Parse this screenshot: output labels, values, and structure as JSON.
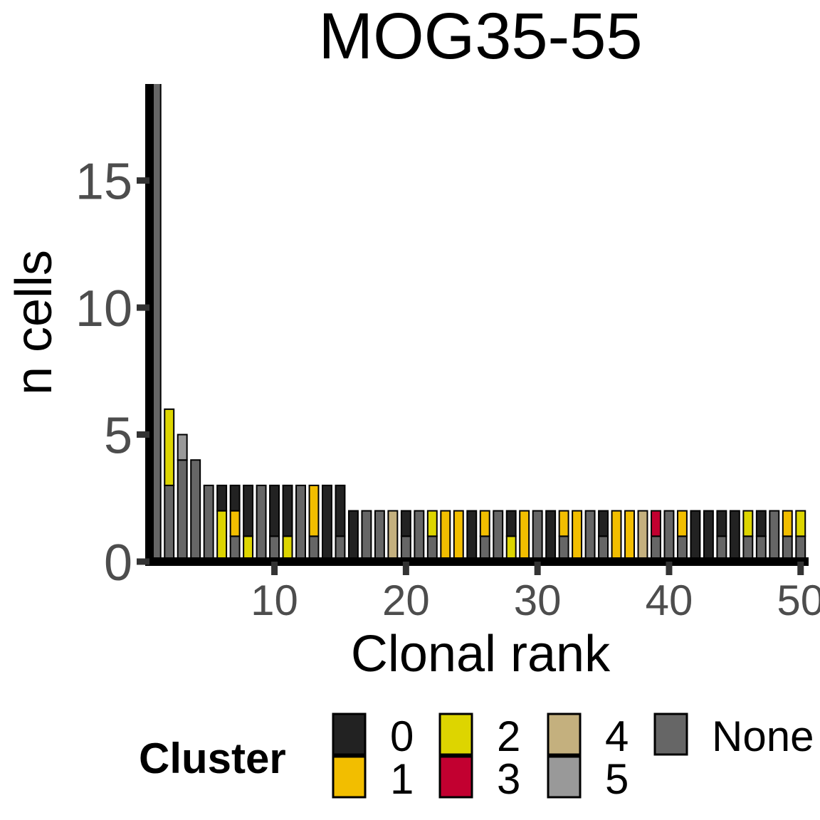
{
  "chart_data": {
    "type": "bar",
    "stacked": true,
    "title": "MOG35-55",
    "xlabel": "Clonal rank",
    "ylabel": "n cells",
    "xlim": [
      0.5,
      50.5
    ],
    "ylim": [
      0,
      18.8
    ],
    "xticks": [
      10,
      20,
      30,
      40,
      50
    ],
    "yticks": [
      0,
      5,
      10,
      15
    ],
    "grid": false,
    "legend": {
      "title": "Cluster",
      "position": "bottom",
      "entries": [
        {
          "key": "0",
          "label": "0",
          "color": "#222222"
        },
        {
          "key": "1",
          "label": "1",
          "color": "#F2BE00"
        },
        {
          "key": "2",
          "label": "2",
          "color": "#DDD500"
        },
        {
          "key": "3",
          "label": "3",
          "color": "#C20030"
        },
        {
          "key": "4",
          "label": "4",
          "color": "#C4B07E"
        },
        {
          "key": "5",
          "label": "5",
          "color": "#999999"
        },
        {
          "key": "None",
          "label": "None",
          "color": "#666666"
        }
      ]
    },
    "bars": [
      {
        "rank": 1,
        "segments": [
          {
            "cluster": "None",
            "value": 19
          }
        ]
      },
      {
        "rank": 2,
        "segments": [
          {
            "cluster": "None",
            "value": 3
          },
          {
            "cluster": "2",
            "value": 3
          }
        ]
      },
      {
        "rank": 3,
        "segments": [
          {
            "cluster": "None",
            "value": 4
          },
          {
            "cluster": "5",
            "value": 1
          }
        ]
      },
      {
        "rank": 4,
        "segments": [
          {
            "cluster": "None",
            "value": 4
          }
        ]
      },
      {
        "rank": 5,
        "segments": [
          {
            "cluster": "None",
            "value": 3
          }
        ]
      },
      {
        "rank": 6,
        "segments": [
          {
            "cluster": "2",
            "value": 2
          },
          {
            "cluster": "0",
            "value": 1
          }
        ]
      },
      {
        "rank": 7,
        "segments": [
          {
            "cluster": "None",
            "value": 1
          },
          {
            "cluster": "1",
            "value": 1
          },
          {
            "cluster": "0",
            "value": 1
          }
        ]
      },
      {
        "rank": 8,
        "segments": [
          {
            "cluster": "2",
            "value": 1
          },
          {
            "cluster": "0",
            "value": 2
          }
        ]
      },
      {
        "rank": 9,
        "segments": [
          {
            "cluster": "None",
            "value": 3
          }
        ]
      },
      {
        "rank": 10,
        "segments": [
          {
            "cluster": "None",
            "value": 1
          },
          {
            "cluster": "0",
            "value": 2
          }
        ]
      },
      {
        "rank": 11,
        "segments": [
          {
            "cluster": "2",
            "value": 1
          },
          {
            "cluster": "0",
            "value": 2
          }
        ]
      },
      {
        "rank": 12,
        "segments": [
          {
            "cluster": "None",
            "value": 3
          }
        ]
      },
      {
        "rank": 13,
        "segments": [
          {
            "cluster": "None",
            "value": 1
          },
          {
            "cluster": "1",
            "value": 2
          }
        ]
      },
      {
        "rank": 14,
        "segments": [
          {
            "cluster": "0",
            "value": 3
          }
        ]
      },
      {
        "rank": 15,
        "segments": [
          {
            "cluster": "None",
            "value": 1
          },
          {
            "cluster": "0",
            "value": 2
          }
        ]
      },
      {
        "rank": 16,
        "segments": [
          {
            "cluster": "0",
            "value": 2
          }
        ]
      },
      {
        "rank": 17,
        "segments": [
          {
            "cluster": "None",
            "value": 2
          }
        ]
      },
      {
        "rank": 18,
        "segments": [
          {
            "cluster": "None",
            "value": 2
          }
        ]
      },
      {
        "rank": 19,
        "segments": [
          {
            "cluster": "4",
            "value": 2
          }
        ]
      },
      {
        "rank": 20,
        "segments": [
          {
            "cluster": "None",
            "value": 1
          },
          {
            "cluster": "0",
            "value": 1
          }
        ]
      },
      {
        "rank": 21,
        "segments": [
          {
            "cluster": "None",
            "value": 2
          }
        ]
      },
      {
        "rank": 22,
        "segments": [
          {
            "cluster": "None",
            "value": 1
          },
          {
            "cluster": "2",
            "value": 1
          }
        ]
      },
      {
        "rank": 23,
        "segments": [
          {
            "cluster": "1",
            "value": 2
          }
        ]
      },
      {
        "rank": 24,
        "segments": [
          {
            "cluster": "1",
            "value": 2
          }
        ]
      },
      {
        "rank": 25,
        "segments": [
          {
            "cluster": "0",
            "value": 2
          }
        ]
      },
      {
        "rank": 26,
        "segments": [
          {
            "cluster": "None",
            "value": 1
          },
          {
            "cluster": "1",
            "value": 1
          }
        ]
      },
      {
        "rank": 27,
        "segments": [
          {
            "cluster": "None",
            "value": 2
          }
        ]
      },
      {
        "rank": 28,
        "segments": [
          {
            "cluster": "2",
            "value": 1
          },
          {
            "cluster": "0",
            "value": 1
          }
        ]
      },
      {
        "rank": 29,
        "segments": [
          {
            "cluster": "1",
            "value": 2
          }
        ]
      },
      {
        "rank": 30,
        "segments": [
          {
            "cluster": "None",
            "value": 2
          }
        ]
      },
      {
        "rank": 31,
        "segments": [
          {
            "cluster": "0",
            "value": 2
          }
        ]
      },
      {
        "rank": 32,
        "segments": [
          {
            "cluster": "None",
            "value": 1
          },
          {
            "cluster": "1",
            "value": 1
          }
        ]
      },
      {
        "rank": 33,
        "segments": [
          {
            "cluster": "1",
            "value": 2
          }
        ]
      },
      {
        "rank": 34,
        "segments": [
          {
            "cluster": "None",
            "value": 2
          }
        ]
      },
      {
        "rank": 35,
        "segments": [
          {
            "cluster": "None",
            "value": 1
          },
          {
            "cluster": "0",
            "value": 1
          }
        ]
      },
      {
        "rank": 36,
        "segments": [
          {
            "cluster": "1",
            "value": 2
          }
        ]
      },
      {
        "rank": 37,
        "segments": [
          {
            "cluster": "1",
            "value": 2
          }
        ]
      },
      {
        "rank": 38,
        "segments": [
          {
            "cluster": "4",
            "value": 2
          }
        ]
      },
      {
        "rank": 39,
        "segments": [
          {
            "cluster": "None",
            "value": 1
          },
          {
            "cluster": "3",
            "value": 1
          }
        ]
      },
      {
        "rank": 40,
        "segments": [
          {
            "cluster": "None",
            "value": 2
          }
        ]
      },
      {
        "rank": 41,
        "segments": [
          {
            "cluster": "None",
            "value": 1
          },
          {
            "cluster": "1",
            "value": 1
          }
        ]
      },
      {
        "rank": 42,
        "segments": [
          {
            "cluster": "0",
            "value": 2
          }
        ]
      },
      {
        "rank": 43,
        "segments": [
          {
            "cluster": "0",
            "value": 2
          }
        ]
      },
      {
        "rank": 44,
        "segments": [
          {
            "cluster": "None",
            "value": 1
          },
          {
            "cluster": "0",
            "value": 1
          }
        ]
      },
      {
        "rank": 45,
        "segments": [
          {
            "cluster": "0",
            "value": 2
          }
        ]
      },
      {
        "rank": 46,
        "segments": [
          {
            "cluster": "None",
            "value": 1
          },
          {
            "cluster": "2",
            "value": 1
          }
        ]
      },
      {
        "rank": 47,
        "segments": [
          {
            "cluster": "None",
            "value": 1
          },
          {
            "cluster": "0",
            "value": 1
          }
        ]
      },
      {
        "rank": 48,
        "segments": [
          {
            "cluster": "None",
            "value": 2
          }
        ]
      },
      {
        "rank": 49,
        "segments": [
          {
            "cluster": "None",
            "value": 1
          },
          {
            "cluster": "1",
            "value": 1
          }
        ]
      },
      {
        "rank": 50,
        "segments": [
          {
            "cluster": "None",
            "value": 1
          },
          {
            "cluster": "2",
            "value": 1
          }
        ]
      }
    ]
  }
}
